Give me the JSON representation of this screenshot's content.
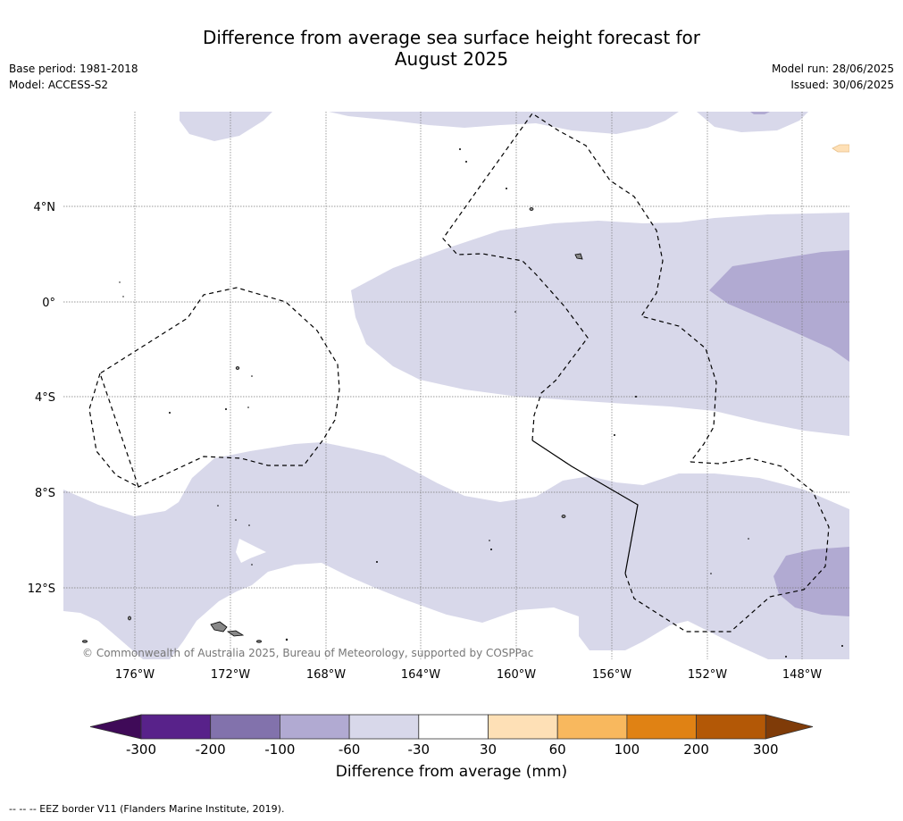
{
  "title_line1": "Difference from average sea surface height forecast for",
  "title_line2": "August 2025",
  "meta": {
    "base_period": "Base period: 1981-2018",
    "model": "Model: ACCESS-S2",
    "model_run": "Model run: 28/06/2025",
    "issued": "Issued: 30/06/2025"
  },
  "copyright": "© Commonwealth of Australia 2025, Bureau of Meteorology, supported by COSPPac",
  "lat_labels": [
    "4°N",
    "0°",
    "4°S",
    "8°S",
    "12°S"
  ],
  "lon_labels": [
    "176°W",
    "172°W",
    "168°W",
    "164°W",
    "160°W",
    "156°W",
    "152°W",
    "148°W"
  ],
  "colorbar": {
    "title": "Difference from average (mm)",
    "ticks": [
      "-300",
      "-200",
      "-100",
      "-60",
      "-30",
      "30",
      "60",
      "100",
      "200",
      "300"
    ],
    "colors": [
      "#3f0a58",
      "#58228a",
      "#8272ac",
      "#b1aad2",
      "#d8d8ea",
      "#ffffff",
      "#fee0b6",
      "#f8b85e",
      "#e08214",
      "#b35806",
      "#7f3b08"
    ]
  },
  "footnote": "--  --  -- EEZ border V11 (Flanders Marine Institute, 2019).",
  "colors": {
    "light_negative": "#d8d8ea",
    "medium_negative": "#b1aad2",
    "light_positive": "#fee0b6",
    "grid": "#777777"
  }
}
